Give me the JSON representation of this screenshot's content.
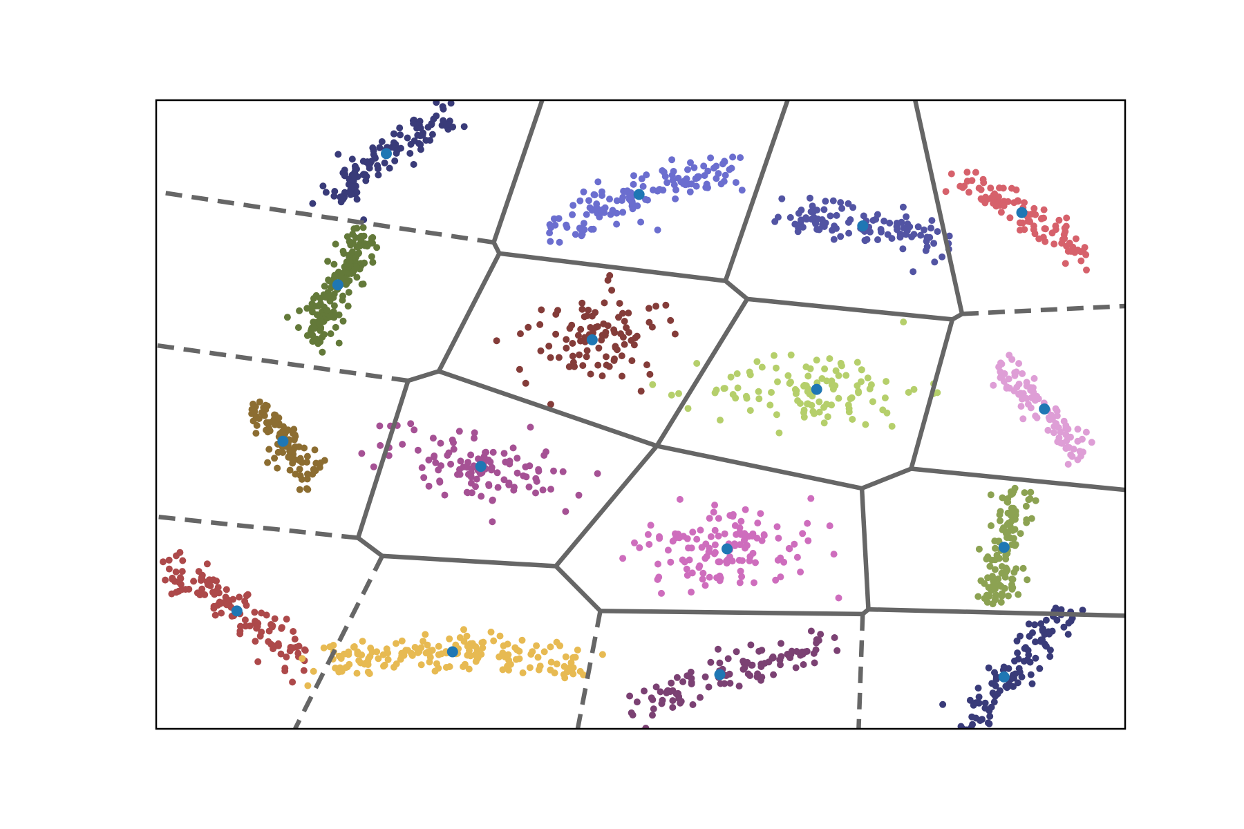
{
  "chart_data": {
    "type": "scatter",
    "title": "",
    "xlabel": "",
    "ylabel": "",
    "xlim": [
      0,
      12
    ],
    "ylim": [
      0,
      8
    ],
    "grid": false,
    "legend": "none",
    "ticks": "none",
    "colors": {
      "frame": "#000000",
      "voronoi_edge": "#666666",
      "centroid": "#1f77b4"
    },
    "clusters": [
      {
        "color": "#393b79",
        "centroid": [
          2.85,
          7.32
        ],
        "n": 120,
        "shape": "arc",
        "spread": [
          1.8,
          0.12
        ],
        "angle_deg": 36
      },
      {
        "color": "#6b6ecf",
        "centroid": [
          5.98,
          6.8
        ],
        "n": 130,
        "shape": "arc",
        "spread": [
          2.4,
          0.12
        ],
        "angle_deg": 20
      },
      {
        "color": "#5254a3",
        "centroid": [
          8.75,
          6.4
        ],
        "n": 110,
        "shape": "arc",
        "spread": [
          2.0,
          0.12
        ],
        "angle_deg": -10
      },
      {
        "color": "#d6616b",
        "centroid": [
          10.72,
          6.57
        ],
        "n": 100,
        "shape": "arc",
        "spread": [
          2.0,
          0.12
        ],
        "angle_deg": -32
      },
      {
        "color": "#637939",
        "centroid": [
          2.25,
          5.65
        ],
        "n": 160,
        "shape": "arc",
        "spread": [
          1.5,
          0.12
        ],
        "angle_deg": 60
      },
      {
        "color": "#843c39",
        "centroid": [
          5.4,
          4.95
        ],
        "n": 100,
        "shape": "blob",
        "spread": [
          0.45,
          0.3
        ],
        "angle_deg": 15
      },
      {
        "color": "#b5cf6b",
        "centroid": [
          8.18,
          4.32
        ],
        "n": 110,
        "shape": "blob",
        "spread": [
          0.65,
          0.25
        ],
        "angle_deg": 0
      },
      {
        "color": "#de9ed6",
        "centroid": [
          11.0,
          4.07
        ],
        "n": 90,
        "shape": "arc",
        "spread": [
          1.6,
          0.12
        ],
        "angle_deg": -50
      },
      {
        "color": "#8c6d31",
        "centroid": [
          1.57,
          3.66
        ],
        "n": 100,
        "shape": "arc",
        "spread": [
          1.2,
          0.12
        ],
        "angle_deg": -50
      },
      {
        "color": "#a55194",
        "centroid": [
          4.02,
          3.34
        ],
        "n": 110,
        "shape": "blob",
        "spread": [
          0.55,
          0.2
        ],
        "angle_deg": -15
      },
      {
        "color": "#ce6dbd",
        "centroid": [
          7.07,
          2.29
        ],
        "n": 130,
        "shape": "blob",
        "spread": [
          0.55,
          0.28
        ],
        "angle_deg": 0
      },
      {
        "color": "#8ca252",
        "centroid": [
          10.5,
          2.31
        ],
        "n": 120,
        "shape": "arc",
        "spread": [
          1.5,
          0.12
        ],
        "angle_deg": 80
      },
      {
        "color": "#ad494a",
        "centroid": [
          1.0,
          1.5
        ],
        "n": 120,
        "shape": "arc",
        "spread": [
          2.2,
          0.12
        ],
        "angle_deg": -35
      },
      {
        "color": "#e7ba52",
        "centroid": [
          3.67,
          0.98
        ],
        "n": 170,
        "shape": "arc",
        "spread": [
          3.2,
          0.12
        ],
        "angle_deg": 0
      },
      {
        "color": "#7b4173",
        "centroid": [
          6.98,
          0.69
        ],
        "n": 110,
        "shape": "arc",
        "spread": [
          2.6,
          0.12
        ],
        "angle_deg": 22
      },
      {
        "color": "#393b79",
        "centroid": [
          10.5,
          0.66
        ],
        "n": 120,
        "shape": "arc",
        "spread": [
          2.3,
          0.12
        ],
        "angle_deg": 50
      }
    ],
    "voronoi": {
      "vertices": [
        [
          4.18,
          6.19
        ],
        [
          4.25,
          6.05
        ],
        [
          7.05,
          5.7
        ],
        [
          7.32,
          5.47
        ],
        [
          9.86,
          5.21
        ],
        [
          9.98,
          5.28
        ],
        [
          3.5,
          4.55
        ],
        [
          3.12,
          4.43
        ],
        [
          6.2,
          3.6
        ],
        [
          8.74,
          3.06
        ],
        [
          9.35,
          3.31
        ],
        [
          2.5,
          2.43
        ],
        [
          2.8,
          2.2
        ],
        [
          4.95,
          2.07
        ],
        [
          5.5,
          1.5
        ],
        [
          8.75,
          1.46
        ],
        [
          8.82,
          1.52
        ]
      ],
      "solid_edges": [
        [
          0,
          1
        ],
        [
          1,
          2
        ],
        [
          2,
          3
        ],
        [
          3,
          4
        ],
        [
          4,
          5
        ],
        [
          1,
          6
        ],
        [
          6,
          7
        ],
        [
          6,
          8
        ],
        [
          3,
          8
        ],
        [
          8,
          9
        ],
        [
          9,
          10
        ],
        [
          4,
          10
        ],
        [
          7,
          11
        ],
        [
          11,
          12
        ],
        [
          12,
          13
        ],
        [
          8,
          13
        ],
        [
          13,
          14
        ],
        [
          14,
          15
        ],
        [
          15,
          16
        ],
        [
          9,
          16
        ]
      ],
      "open_edges": [
        {
          "from": 2,
          "to": [
            7.82,
            8.0
          ],
          "style": "solid"
        },
        {
          "from": 0,
          "to": [
            4.78,
            8.0
          ],
          "style": "solid"
        },
        {
          "from": 5,
          "to": [
            9.4,
            8.0
          ],
          "style": "solid"
        },
        {
          "from": 5,
          "to": [
            12.0,
            5.38
          ],
          "style": "dashed"
        },
        {
          "from": 10,
          "to": [
            12.0,
            3.04
          ],
          "style": "solid"
        },
        {
          "from": 16,
          "to": [
            12.0,
            1.44
          ],
          "style": "solid"
        },
        {
          "from": 15,
          "to": [
            8.7,
            0.0
          ],
          "style": "dashed"
        },
        {
          "from": 14,
          "to": [
            5.22,
            0.0
          ],
          "style": "dashed"
        },
        {
          "from": 12,
          "to": [
            1.72,
            0.0
          ],
          "style": "dashed"
        },
        {
          "from": 11,
          "to": [
            0.0,
            2.7
          ],
          "style": "dashed"
        },
        {
          "from": 7,
          "to": [
            0.0,
            4.88
          ],
          "style": "dashed"
        },
        {
          "from": 0,
          "to": [
            0.1,
            6.82
          ],
          "style": "dashed"
        }
      ]
    }
  }
}
